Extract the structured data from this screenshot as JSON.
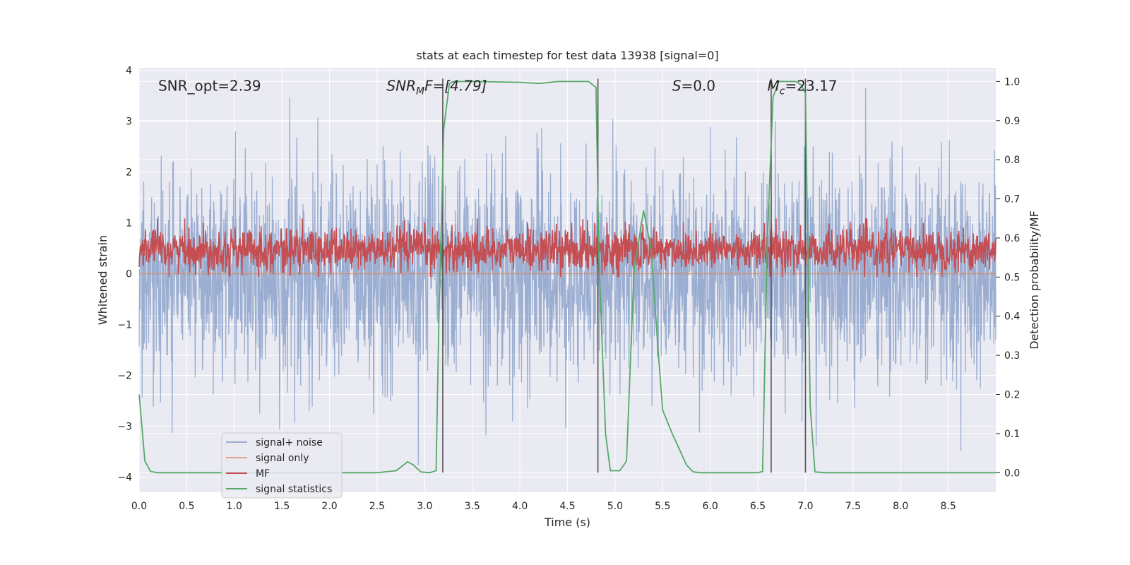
{
  "chart_data": {
    "type": "line",
    "title": "stats at each timestep for test data 13938 [signal=0]",
    "xlabel": "Time (s)",
    "ylabel": "Whitened strain",
    "y2label": "Detection probability/MF",
    "xlim": [
      0.0,
      9.0
    ],
    "ylim": [
      -4.3,
      4.05
    ],
    "y2lim": [
      -0.05,
      1.035
    ],
    "xticks": [
      "0.0",
      "0.5",
      "1.0",
      "1.5",
      "2.0",
      "2.5",
      "3.0",
      "3.5",
      "4.0",
      "4.5",
      "5.0",
      "5.5",
      "6.0",
      "6.5",
      "7.0",
      "7.5",
      "8.0",
      "8.5"
    ],
    "yticks": [
      "4",
      "3",
      "2",
      "1",
      "0",
      "−1",
      "−2",
      "−3",
      "−4"
    ],
    "y2ticks": [
      "1.0",
      "0.9",
      "0.8",
      "0.7",
      "0.6",
      "0.5",
      "0.4",
      "0.3",
      "0.2",
      "0.1",
      "0.0"
    ],
    "grid": true,
    "legend_position": "lower-left",
    "annotations": {
      "snr_opt": "SNR_opt=2.39",
      "snr_mf_main": "SNR",
      "snr_mf_sub": "M",
      "snr_mf_rest": "F=[4.79]",
      "s_main": "S",
      "s_rest": "=0.0",
      "mc_main": "M",
      "mc_sub": "c",
      "mc_rest": "=23.17"
    },
    "vertical_markers": [
      3.19,
      4.82,
      6.64,
      7.0
    ],
    "series": [
      {
        "name": "signal+ noise",
        "color": "#4c72b0",
        "description_range": [
          -4.0,
          3.65
        ],
        "style": "noise"
      },
      {
        "name": "signal only",
        "color": "#dd8452",
        "values_constant": 0.0
      },
      {
        "name": "MF",
        "color": "#c44e52",
        "axis": "right",
        "band": [
          0.52,
          0.62
        ]
      },
      {
        "name": "signal statistics",
        "color": "#55a868",
        "axis": "right",
        "x": [
          0.0,
          0.06,
          0.12,
          0.2,
          0.3,
          1.0,
          2.0,
          2.5,
          2.7,
          2.78,
          2.82,
          2.88,
          2.96,
          3.05,
          3.12,
          3.15,
          3.2,
          3.26,
          3.3,
          3.5,
          4.0,
          4.2,
          4.4,
          4.6,
          4.72,
          4.8,
          4.83,
          4.9,
          4.95,
          5.05,
          5.12,
          5.2,
          5.3,
          5.38,
          5.45,
          5.5,
          5.6,
          5.75,
          5.82,
          5.9,
          6.0,
          6.5,
          6.55,
          6.6,
          6.66,
          6.72,
          6.8,
          6.9,
          6.96,
          7.0,
          7.05,
          7.1,
          7.2,
          7.5,
          8.0,
          8.5,
          9.0
        ],
        "y": [
          0.2,
          0.03,
          0.003,
          0.0,
          0.0,
          0.0,
          0.0,
          0.0,
          0.005,
          0.02,
          0.028,
          0.02,
          0.002,
          0.0,
          0.005,
          0.4,
          0.88,
          0.995,
          1.0,
          1.0,
          0.998,
          0.995,
          1.0,
          1.0,
          1.0,
          0.985,
          0.55,
          0.1,
          0.005,
          0.005,
          0.03,
          0.52,
          0.67,
          0.57,
          0.32,
          0.16,
          0.1,
          0.02,
          0.002,
          0.0,
          0.0,
          0.0,
          0.003,
          0.6,
          0.96,
          1.0,
          1.0,
          1.0,
          0.99,
          0.97,
          0.17,
          0.002,
          0.0,
          0.0,
          0.0,
          0.0,
          0.0
        ]
      }
    ]
  }
}
